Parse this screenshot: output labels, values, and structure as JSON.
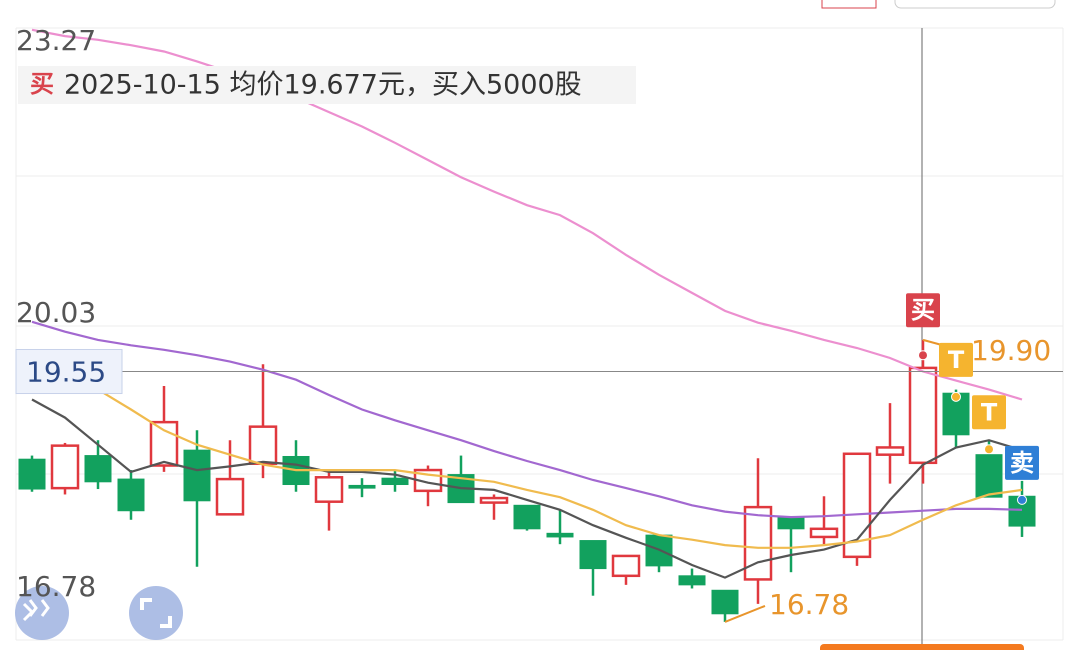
{
  "chart_data": {
    "type": "candlestick",
    "header": {
      "icon": "买",
      "text": "2025-10-15 均价19.677元，买入5000股"
    },
    "up_color": "#e0383e",
    "down_color": "#12a15e",
    "open": [
      18.58,
      18.26,
      18.62,
      18.36,
      18.51,
      18.68,
      17.97,
      18.53,
      18.61,
      18.11,
      18.29,
      18.37,
      18.23,
      18.41,
      18.1,
      18.07,
      17.76,
      17.68,
      17.29,
      17.74,
      17.29,
      17.13,
      17.25,
      17.94,
      17.72,
      17.5,
      18.63,
      18.54,
      19.31,
      18.63,
      18.17
    ],
    "high": [
      18.62,
      18.76,
      18.79,
      18.46,
      19.39,
      18.9,
      18.79,
      19.63,
      18.79,
      18.46,
      18.37,
      18.46,
      18.51,
      18.62,
      18.19,
      18.07,
      18.02,
      17.68,
      17.51,
      17.74,
      17.37,
      17.13,
      18.59,
      17.94,
      18.17,
      18.64,
      19.2,
      19.9,
      19.35,
      18.79,
      18.34
    ],
    "low": [
      18.22,
      18.19,
      18.25,
      17.91,
      18.44,
      17.39,
      17.97,
      18.37,
      18.22,
      17.79,
      18.16,
      18.22,
      18.06,
      18.1,
      17.91,
      17.79,
      17.64,
      17.07,
      17.19,
      17.33,
      17.15,
      16.78,
      16.98,
      17.33,
      17.64,
      17.4,
      18.31,
      18.31,
      18.71,
      18.16,
      17.72
    ],
    "close": [
      18.25,
      18.73,
      18.33,
      18.01,
      18.99,
      18.12,
      18.36,
      18.94,
      18.3,
      18.38,
      18.26,
      18.3,
      18.46,
      18.1,
      18.15,
      17.81,
      17.72,
      17.37,
      17.51,
      17.4,
      17.19,
      16.87,
      18.05,
      17.81,
      17.81,
      18.64,
      18.71,
      19.59,
      18.85,
      18.16,
      17.84
    ],
    "series": [
      {
        "color": "#ec8fcf",
        "values": [
          23.33,
          23.26,
          23.22,
          23.16,
          23.09,
          22.98,
          22.86,
          22.72,
          22.58,
          22.42,
          22.26,
          22.08,
          21.89,
          21.7,
          21.54,
          21.39,
          21.28,
          21.08,
          20.84,
          20.62,
          20.42,
          20.22,
          20.09,
          20.0,
          19.9,
          19.81,
          19.7,
          19.55,
          19.45,
          19.35,
          19.24
        ]
      },
      {
        "color": "#a268d0",
        "values": [
          20.1,
          19.99,
          19.9,
          19.84,
          19.79,
          19.73,
          19.66,
          19.57,
          19.46,
          19.29,
          19.13,
          19.01,
          18.9,
          18.79,
          18.67,
          18.56,
          18.46,
          18.35,
          18.26,
          18.17,
          18.07,
          18.0,
          17.96,
          17.94,
          17.95,
          17.97,
          17.99,
          18.01,
          18.03,
          18.03,
          18.02
        ]
      },
      {
        "color": "#555555",
        "values": [
          19.24,
          19.04,
          18.74,
          18.44,
          18.55,
          18.46,
          18.5,
          18.55,
          18.52,
          18.44,
          18.44,
          18.41,
          18.32,
          18.26,
          18.24,
          18.13,
          18.02,
          17.85,
          17.71,
          17.58,
          17.41,
          17.27,
          17.44,
          17.52,
          17.58,
          17.69,
          18.13,
          18.52,
          18.71,
          18.79,
          18.68
        ]
      },
      {
        "color": "#f0bb4e",
        "values": [
          null,
          null,
          19.35,
          19.13,
          18.9,
          18.74,
          18.63,
          18.52,
          18.46,
          18.46,
          18.46,
          18.46,
          18.41,
          18.37,
          18.33,
          18.24,
          18.16,
          18.02,
          17.85,
          17.74,
          17.69,
          17.63,
          17.6,
          17.6,
          17.63,
          17.67,
          17.74,
          17.91,
          18.07,
          18.19,
          18.24
        ]
      }
    ],
    "ylim": [
      16.58,
      23.35
    ],
    "yticks": [
      23.27,
      20.03,
      16.78
    ],
    "crosshair_price": 19.55,
    "high_label": {
      "value": 19.9,
      "label": "19.90"
    },
    "low_label": {
      "value": 16.78,
      "label": "16.78"
    },
    "trades": [
      {
        "label": "买",
        "index": 27,
        "price": 19.73,
        "color": "#d9434c"
      },
      {
        "label": "T",
        "index": 28,
        "price": 19.27,
        "color": "#f5b42f"
      },
      {
        "label": "T",
        "index": 29,
        "price": 18.69,
        "color": "#f5b42f"
      },
      {
        "label": "卖",
        "index": 30,
        "price": 18.13,
        "color": "#2f7fd6"
      }
    ]
  }
}
